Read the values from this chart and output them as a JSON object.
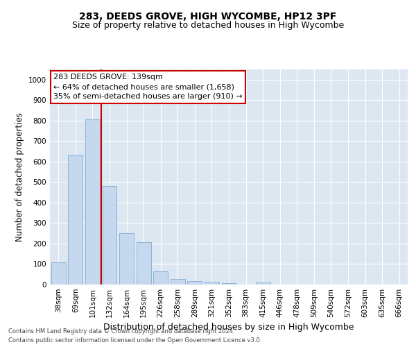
{
  "title": "283, DEEDS GROVE, HIGH WYCOMBE, HP12 3PF",
  "subtitle": "Size of property relative to detached houses in High Wycombe",
  "xlabel": "Distribution of detached houses by size in High Wycombe",
  "ylabel": "Number of detached properties",
  "categories": [
    "38sqm",
    "69sqm",
    "101sqm",
    "132sqm",
    "164sqm",
    "195sqm",
    "226sqm",
    "258sqm",
    "289sqm",
    "321sqm",
    "352sqm",
    "383sqm",
    "415sqm",
    "446sqm",
    "478sqm",
    "509sqm",
    "540sqm",
    "572sqm",
    "603sqm",
    "635sqm",
    "666sqm"
  ],
  "values": [
    110,
    635,
    805,
    480,
    250,
    207,
    63,
    28,
    18,
    13,
    8,
    0,
    10,
    0,
    0,
    0,
    0,
    0,
    0,
    0,
    0
  ],
  "bar_color": "#c5d8ee",
  "bar_edgecolor": "#7dadd4",
  "vline_x": 2.5,
  "vline_color": "#cc0000",
  "annotation_text": "283 DEEDS GROVE: 139sqm\n← 64% of detached houses are smaller (1,658)\n35% of semi-detached houses are larger (910) →",
  "annotation_box_color": "#ffffff",
  "annotation_box_edgecolor": "#cc0000",
  "ylim": [
    0,
    1050
  ],
  "yticks": [
    0,
    100,
    200,
    300,
    400,
    500,
    600,
    700,
    800,
    900,
    1000
  ],
  "background_color": "#dde7f2",
  "footer_line1": "Contains HM Land Registry data © Crown copyright and database right 2024.",
  "footer_line2": "Contains public sector information licensed under the Open Government Licence v3.0.",
  "title_fontsize": 10,
  "subtitle_fontsize": 9,
  "xlabel_fontsize": 9,
  "ylabel_fontsize": 8.5,
  "annot_fontsize": 8,
  "tick_fontsize": 7.5,
  "footer_fontsize": 6
}
